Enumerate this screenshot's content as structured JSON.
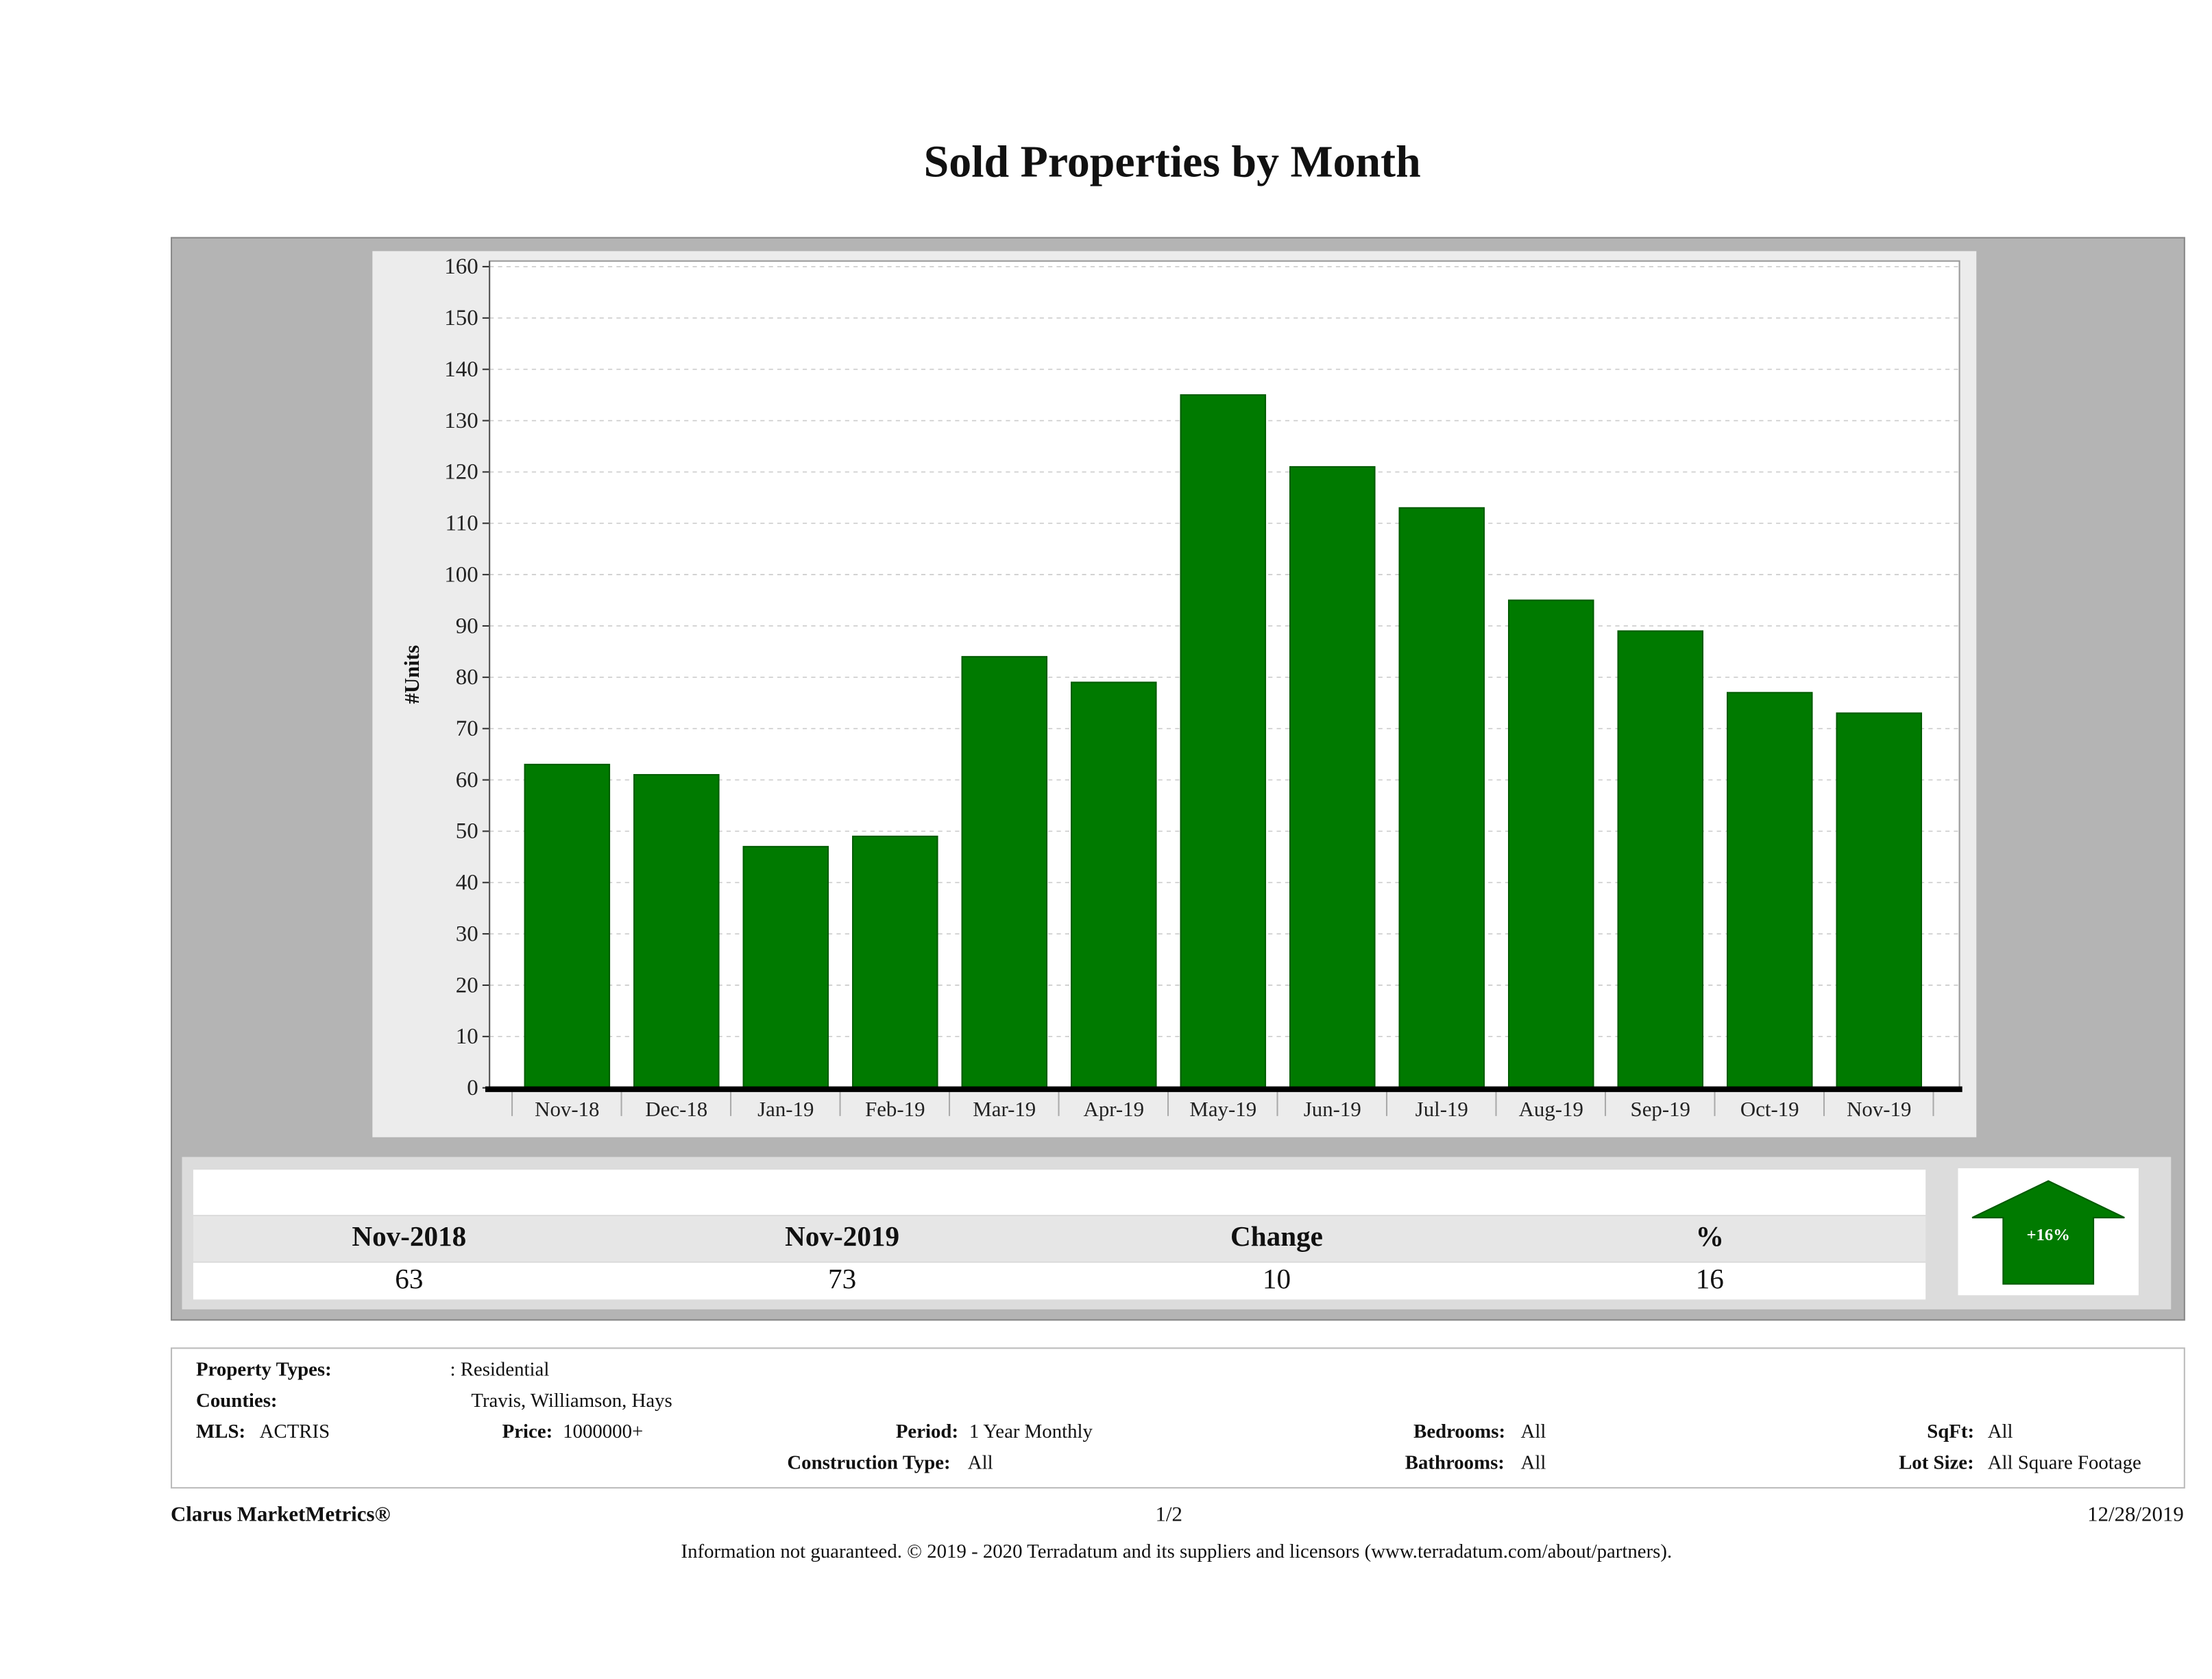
{
  "title": "Sold Properties by Month",
  "chart_data": {
    "type": "bar",
    "title": "Sold Properties by Month",
    "ylabel": "#Units",
    "xlabel": "",
    "categories": [
      "Nov-18",
      "Dec-18",
      "Jan-19",
      "Feb-19",
      "Mar-19",
      "Apr-19",
      "May-19",
      "Jun-19",
      "Jul-19",
      "Aug-19",
      "Sep-19",
      "Oct-19",
      "Nov-19"
    ],
    "values": [
      63,
      61,
      47,
      49,
      84,
      79,
      135,
      121,
      113,
      95,
      89,
      77,
      73
    ],
    "ylim": [
      0,
      160
    ],
    "yticks": [
      0,
      10,
      20,
      30,
      40,
      50,
      60,
      70,
      80,
      90,
      100,
      110,
      120,
      130,
      140,
      150,
      160
    ],
    "grid": true,
    "bar_color": "#007a00"
  },
  "summary": {
    "headers": [
      "Nov-2018",
      "Nov-2019",
      "Change",
      "%"
    ],
    "values": [
      "63",
      "73",
      "10",
      "16"
    ],
    "badge": "+16%",
    "badge_color": "#007a00",
    "badge_icon": "up-arrow-icon"
  },
  "criteria": {
    "property_types_label": "Property Types:",
    "property_types": ": Residential",
    "counties_label": "Counties:",
    "counties": "Travis, Williamson, Hays",
    "mls_label": "MLS:",
    "mls": "ACTRIS",
    "price_label": "Price:",
    "price": "1000000+",
    "period_label": "Period:",
    "period": "1 Year Monthly",
    "construction_label": "Construction Type:",
    "construction": "All",
    "bedrooms_label": "Bedrooms:",
    "bedrooms": "All",
    "bathrooms_label": "Bathrooms:",
    "bathrooms": "All",
    "sqft_label": "SqFt:",
    "sqft": "All",
    "lotsize_label": "Lot Size:",
    "lotsize": "All Square Footage"
  },
  "footer": {
    "brand": "Clarus MarketMetrics®",
    "page": "1/2",
    "date": "12/28/2019",
    "disclaimer": "Information not guaranteed. © 2019 - 2020 Terradatum and its suppliers and licensors (www.terradatum.com/about/partners)."
  }
}
